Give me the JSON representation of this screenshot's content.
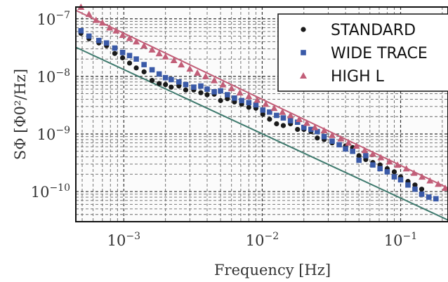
{
  "chart_data": {
    "type": "scatter",
    "xscale": "log",
    "yscale": "log",
    "xlim": [
      0.00045,
      0.22
    ],
    "ylim": [
      3e-11,
      1.6e-07
    ],
    "grid": true,
    "legend_position": "top-right",
    "xlabel": "Frequency [Hz]",
    "ylabel": "SΦ [Φ0²/Hz]",
    "x_ticks": [
      {
        "value": 0.001,
        "base": "10",
        "exp": "−3"
      },
      {
        "value": 0.01,
        "base": "10",
        "exp": "−2"
      },
      {
        "value": 0.1,
        "base": "10",
        "exp": "−1"
      }
    ],
    "y_ticks": [
      {
        "value": 1e-07,
        "base": "10",
        "exp": "−7"
      },
      {
        "value": 1e-08,
        "base": "10",
        "exp": "−8"
      },
      {
        "value": 1e-09,
        "base": "10",
        "exp": "−9"
      },
      {
        "value": 1e-10,
        "base": "10",
        "exp": "−10"
      }
    ],
    "series": [
      {
        "name": "STANDARD",
        "marker": "circle",
        "color": "#1a1a1a",
        "points": [
          [
            0.00049,
            5.6e-08
          ],
          [
            0.00056,
            4.5e-08
          ],
          [
            0.00066,
            3.8e-08
          ],
          [
            0.00075,
            3.4e-08
          ],
          [
            0.00086,
            2.5e-08
          ],
          [
            0.00098,
            2.1e-08
          ],
          [
            0.0011,
            1.7e-08
          ],
          [
            0.00123,
            1.4e-08
          ],
          [
            0.0014,
            1.2e-08
          ],
          [
            0.0016,
            8.5e-09
          ],
          [
            0.0018,
            7.5e-09
          ],
          [
            0.002,
            7.2e-09
          ],
          [
            0.0022,
            6.5e-09
          ],
          [
            0.0025,
            6.8e-09
          ],
          [
            0.0028,
            5.8e-09
          ],
          [
            0.0032,
            5.8e-09
          ],
          [
            0.0036,
            5.2e-09
          ],
          [
            0.004,
            4.8e-09
          ],
          [
            0.0045,
            4.9e-09
          ],
          [
            0.005,
            3.8e-09
          ],
          [
            0.0056,
            4.1e-09
          ],
          [
            0.0063,
            3.6e-09
          ],
          [
            0.0071,
            3.3e-09
          ],
          [
            0.008,
            2.9e-09
          ],
          [
            0.009,
            2.8e-09
          ],
          [
            0.0101,
            2.2e-09
          ],
          [
            0.0113,
            1.8e-09
          ],
          [
            0.0127,
            1.5e-09
          ],
          [
            0.0142,
            1.4e-09
          ],
          [
            0.016,
            1.5e-09
          ],
          [
            0.018,
            1.2e-09
          ],
          [
            0.02,
            1.2e-09
          ],
          [
            0.0225,
            1.1e-09
          ],
          [
            0.025,
            8.5e-10
          ],
          [
            0.028,
            8e-10
          ],
          [
            0.032,
            7e-10
          ],
          [
            0.036,
            6.5e-10
          ],
          [
            0.04,
            6.2e-10
          ],
          [
            0.045,
            5.8e-10
          ],
          [
            0.05,
            4.2e-10
          ],
          [
            0.056,
            3.6e-10
          ],
          [
            0.063,
            3.2e-10
          ],
          [
            0.071,
            2.9e-10
          ],
          [
            0.08,
            2.5e-10
          ],
          [
            0.09,
            2.2e-10
          ],
          [
            0.1,
            1.8e-10
          ],
          [
            0.113,
            1.5e-10
          ],
          [
            0.127,
            1.3e-10
          ],
          [
            0.142,
            1.1e-10
          ]
        ]
      },
      {
        "name": "WIDE TRACE",
        "marker": "square",
        "color": "#3a5aa8",
        "points": [
          [
            0.00049,
            6.2e-08
          ],
          [
            0.00056,
            5e-08
          ],
          [
            0.00066,
            4.2e-08
          ],
          [
            0.00075,
            3.8e-08
          ],
          [
            0.00086,
            3.1e-08
          ],
          [
            0.00098,
            2.6e-08
          ],
          [
            0.0011,
            2.3e-08
          ],
          [
            0.00123,
            2e-08
          ],
          [
            0.0014,
            1.6e-08
          ],
          [
            0.0016,
            1.3e-08
          ],
          [
            0.0018,
            1.1e-08
          ],
          [
            0.002,
            9.5e-09
          ],
          [
            0.0022,
            8.8e-09
          ],
          [
            0.0025,
            8e-09
          ],
          [
            0.0028,
            7.2e-09
          ],
          [
            0.0032,
            6.5e-09
          ],
          [
            0.0036,
            6.8e-09
          ],
          [
            0.004,
            6e-09
          ],
          [
            0.0045,
            5.4e-09
          ],
          [
            0.005,
            5.6e-09
          ],
          [
            0.0056,
            4.8e-09
          ],
          [
            0.0063,
            4.2e-09
          ],
          [
            0.0071,
            3.8e-09
          ],
          [
            0.008,
            3.5e-09
          ],
          [
            0.009,
            3.2e-09
          ],
          [
            0.0101,
            2.6e-09
          ],
          [
            0.0113,
            2.4e-09
          ],
          [
            0.0127,
            2.1e-09
          ],
          [
            0.0142,
            1.9e-09
          ],
          [
            0.016,
            1.7e-09
          ],
          [
            0.018,
            1.6e-09
          ],
          [
            0.02,
            1.3e-09
          ],
          [
            0.0225,
            1.2e-09
          ],
          [
            0.025,
            1.1e-09
          ],
          [
            0.028,
            9e-10
          ],
          [
            0.032,
            7.5e-10
          ],
          [
            0.036,
            6.5e-10
          ],
          [
            0.04,
            5.5e-10
          ],
          [
            0.045,
            5e-10
          ],
          [
            0.05,
            3.5e-10
          ],
          [
            0.056,
            4.2e-10
          ],
          [
            0.063,
            2.9e-10
          ],
          [
            0.071,
            2.5e-10
          ],
          [
            0.08,
            2.2e-10
          ],
          [
            0.09,
            1.8e-10
          ],
          [
            0.1,
            1.6e-10
          ],
          [
            0.113,
            1.3e-10
          ],
          [
            0.127,
            1.1e-10
          ],
          [
            0.142,
            9e-11
          ],
          [
            0.16,
            8e-11
          ],
          [
            0.18,
            7.5e-11
          ]
        ]
      },
      {
        "name": "HIGH L",
        "marker": "triangle",
        "color": "#c25e78",
        "points": [
          [
            0.00049,
            1.6e-07
          ],
          [
            0.00056,
            1.2e-07
          ],
          [
            0.00063,
            9.5e-08
          ],
          [
            0.0007,
            8.5e-08
          ],
          [
            0.00079,
            7e-08
          ],
          [
            0.00088,
            6.2e-08
          ],
          [
            0.00098,
            5.2e-08
          ],
          [
            0.0011,
            4.6e-08
          ],
          [
            0.00123,
            4e-08
          ],
          [
            0.0014,
            3.4e-08
          ],
          [
            0.0016,
            2.9e-08
          ],
          [
            0.0018,
            2.5e-08
          ],
          [
            0.002,
            2.2e-08
          ],
          [
            0.0023,
            1.9e-08
          ],
          [
            0.0026,
            1.6e-08
          ],
          [
            0.003,
            1.35e-08
          ],
          [
            0.0034,
            1.15e-08
          ],
          [
            0.0039,
            1e-08
          ],
          [
            0.0045,
            8.5e-09
          ],
          [
            0.0052,
            7.2e-09
          ],
          [
            0.006,
            6.2e-09
          ],
          [
            0.0069,
            5.2e-09
          ],
          [
            0.008,
            4.5e-09
          ],
          [
            0.0092,
            3.9e-09
          ],
          [
            0.0106,
            3.3e-09
          ],
          [
            0.0122,
            2.8e-09
          ],
          [
            0.014,
            2.4e-09
          ],
          [
            0.016,
            2.1e-09
          ],
          [
            0.0185,
            1.8e-09
          ],
          [
            0.021,
            1.55e-09
          ],
          [
            0.024,
            1.3e-09
          ],
          [
            0.028,
            1.15e-09
          ],
          [
            0.032,
            9.5e-10
          ],
          [
            0.037,
            8.3e-10
          ],
          [
            0.042,
            7e-10
          ],
          [
            0.048,
            6.2e-10
          ],
          [
            0.055,
            5.2e-10
          ],
          [
            0.063,
            4.5e-10
          ],
          [
            0.072,
            3.9e-10
          ],
          [
            0.083,
            3.3e-10
          ],
          [
            0.095,
            2.9e-10
          ],
          [
            0.11,
            2.5e-10
          ],
          [
            0.125,
            2.1e-10
          ],
          [
            0.143,
            1.8e-10
          ],
          [
            0.163,
            1.55e-10
          ],
          [
            0.187,
            1.35e-10
          ],
          [
            0.21,
            1.15e-10
          ]
        ]
      }
    ],
    "fit_lines": [
      {
        "color": "#c25e78",
        "points": [
          [
            0.00045,
            1.4e-07
          ],
          [
            0.22,
            1.15e-10
          ]
        ]
      },
      {
        "color": "#3f7a6e",
        "points": [
          [
            0.00045,
            3.2e-08
          ],
          [
            0.22,
            3.2e-11
          ]
        ]
      }
    ]
  }
}
